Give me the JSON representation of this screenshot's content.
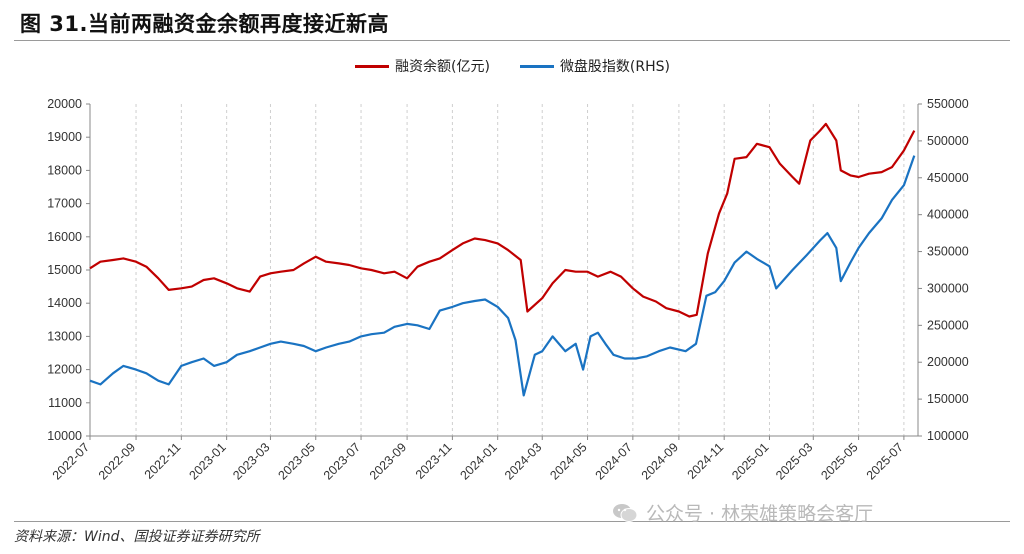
{
  "figure": {
    "title": "图 31.当前两融资金余额再度接近新高",
    "source": "资料来源：Wind、国投证券证券研究所",
    "watermark": "公众号 · 林荣雄策略会客厅"
  },
  "colors": {
    "left_series": "#c00000",
    "right_series": "#1a73c2",
    "grid": "#cfcfcf"
  },
  "icons": {
    "watermark_icon": "wechat-icon"
  },
  "chart_data": {
    "type": "line",
    "title": "",
    "xlabel": "",
    "ylabel": "",
    "y_left": {
      "min": 10000,
      "max": 20000,
      "step": 1000
    },
    "y_right": {
      "min": 100000,
      "max": 550000,
      "step": 50000
    },
    "grid": "vertical-dashed",
    "legend_position": "top-center",
    "x_ticks": [
      "2022-07",
      "2022-09",
      "2022-11",
      "2023-01",
      "2023-03",
      "2023-05",
      "2023-07",
      "2023-09",
      "2023-11",
      "2024-01",
      "2024-03",
      "2024-05",
      "2024-07",
      "2024-09",
      "2024-11",
      "2025-01",
      "2025-03",
      "2025-05",
      "2025-07"
    ],
    "y_left_ticks": [
      "10000",
      "11000",
      "12000",
      "13000",
      "14000",
      "15000",
      "16000",
      "17000",
      "18000",
      "19000",
      "20000"
    ],
    "y_right_ticks": [
      "100000",
      "150000",
      "200000",
      "250000",
      "300000",
      "350000",
      "400000",
      "450000",
      "500000",
      "550000"
    ],
    "series": [
      {
        "name": "融资余额(亿元)",
        "axis": "left",
        "color": "#c00000",
        "points": [
          [
            "2022-07-01",
            15050
          ],
          [
            "2022-07-15",
            15250
          ],
          [
            "2022-08-01",
            15300
          ],
          [
            "2022-08-15",
            15350
          ],
          [
            "2022-09-01",
            15250
          ],
          [
            "2022-09-15",
            15100
          ],
          [
            "2022-10-01",
            14750
          ],
          [
            "2022-10-15",
            14400
          ],
          [
            "2022-11-01",
            14450
          ],
          [
            "2022-11-15",
            14500
          ],
          [
            "2022-12-01",
            14700
          ],
          [
            "2022-12-15",
            14750
          ],
          [
            "2023-01-01",
            14600
          ],
          [
            "2023-01-15",
            14450
          ],
          [
            "2023-02-01",
            14350
          ],
          [
            "2023-02-15",
            14800
          ],
          [
            "2023-03-01",
            14900
          ],
          [
            "2023-03-15",
            14950
          ],
          [
            "2023-04-01",
            15000
          ],
          [
            "2023-04-15",
            15200
          ],
          [
            "2023-05-01",
            15400
          ],
          [
            "2023-05-15",
            15250
          ],
          [
            "2023-06-01",
            15200
          ],
          [
            "2023-06-15",
            15150
          ],
          [
            "2023-07-01",
            15050
          ],
          [
            "2023-07-15",
            15000
          ],
          [
            "2023-08-01",
            14900
          ],
          [
            "2023-08-15",
            14950
          ],
          [
            "2023-09-01",
            14750
          ],
          [
            "2023-09-15",
            15100
          ],
          [
            "2023-10-01",
            15250
          ],
          [
            "2023-10-15",
            15350
          ],
          [
            "2023-11-01",
            15600
          ],
          [
            "2023-11-15",
            15800
          ],
          [
            "2023-12-01",
            15950
          ],
          [
            "2023-12-15",
            15900
          ],
          [
            "2024-01-01",
            15800
          ],
          [
            "2024-01-15",
            15600
          ],
          [
            "2024-02-01",
            15300
          ],
          [
            "2024-02-10",
            13750
          ],
          [
            "2024-03-01",
            14150
          ],
          [
            "2024-03-15",
            14600
          ],
          [
            "2024-04-01",
            15000
          ],
          [
            "2024-04-15",
            14950
          ],
          [
            "2024-05-01",
            14950
          ],
          [
            "2024-05-15",
            14800
          ],
          [
            "2024-06-01",
            14950
          ],
          [
            "2024-06-15",
            14800
          ],
          [
            "2024-07-01",
            14450
          ],
          [
            "2024-07-15",
            14200
          ],
          [
            "2024-08-01",
            14050
          ],
          [
            "2024-08-15",
            13850
          ],
          [
            "2024-09-01",
            13750
          ],
          [
            "2024-09-15",
            13600
          ],
          [
            "2024-09-25",
            13650
          ],
          [
            "2024-10-10",
            15500
          ],
          [
            "2024-10-25",
            16700
          ],
          [
            "2024-11-05",
            17300
          ],
          [
            "2024-11-15",
            18350
          ],
          [
            "2024-12-01",
            18400
          ],
          [
            "2024-12-15",
            18800
          ],
          [
            "2025-01-01",
            18700
          ],
          [
            "2025-01-15",
            18200
          ],
          [
            "2025-02-01",
            17800
          ],
          [
            "2025-02-10",
            17600
          ],
          [
            "2025-02-25",
            18900
          ],
          [
            "2025-03-10",
            19200
          ],
          [
            "2025-03-18",
            19400
          ],
          [
            "2025-04-01",
            18900
          ],
          [
            "2025-04-07",
            18000
          ],
          [
            "2025-04-20",
            17850
          ],
          [
            "2025-05-01",
            17800
          ],
          [
            "2025-05-15",
            17900
          ],
          [
            "2025-06-01",
            17950
          ],
          [
            "2025-06-15",
            18100
          ],
          [
            "2025-07-01",
            18600
          ],
          [
            "2025-07-15",
            19200
          ]
        ]
      },
      {
        "name": "微盘股指数(RHS)",
        "axis": "right",
        "color": "#1a73c2",
        "points": [
          [
            "2022-07-01",
            175000
          ],
          [
            "2022-07-15",
            170000
          ],
          [
            "2022-08-01",
            185000
          ],
          [
            "2022-08-15",
            195000
          ],
          [
            "2022-09-01",
            190000
          ],
          [
            "2022-09-15",
            185000
          ],
          [
            "2022-10-01",
            175000
          ],
          [
            "2022-10-15",
            170000
          ],
          [
            "2022-11-01",
            195000
          ],
          [
            "2022-11-15",
            200000
          ],
          [
            "2022-12-01",
            205000
          ],
          [
            "2022-12-15",
            195000
          ],
          [
            "2023-01-01",
            200000
          ],
          [
            "2023-01-15",
            210000
          ],
          [
            "2023-02-01",
            215000
          ],
          [
            "2023-02-15",
            220000
          ],
          [
            "2023-03-01",
            225000
          ],
          [
            "2023-03-15",
            228000
          ],
          [
            "2023-04-01",
            225000
          ],
          [
            "2023-04-15",
            222000
          ],
          [
            "2023-05-01",
            215000
          ],
          [
            "2023-05-15",
            220000
          ],
          [
            "2023-06-01",
            225000
          ],
          [
            "2023-06-15",
            228000
          ],
          [
            "2023-07-01",
            235000
          ],
          [
            "2023-07-15",
            238000
          ],
          [
            "2023-08-01",
            240000
          ],
          [
            "2023-08-15",
            248000
          ],
          [
            "2023-09-01",
            252000
          ],
          [
            "2023-09-15",
            250000
          ],
          [
            "2023-10-01",
            245000
          ],
          [
            "2023-10-15",
            270000
          ],
          [
            "2023-11-01",
            275000
          ],
          [
            "2023-11-15",
            280000
          ],
          [
            "2023-12-01",
            283000
          ],
          [
            "2023-12-15",
            285000
          ],
          [
            "2024-01-01",
            275000
          ],
          [
            "2024-01-15",
            260000
          ],
          [
            "2024-01-25",
            230000
          ],
          [
            "2024-02-05",
            155000
          ],
          [
            "2024-02-20",
            210000
          ],
          [
            "2024-03-01",
            215000
          ],
          [
            "2024-03-15",
            235000
          ],
          [
            "2024-04-01",
            215000
          ],
          [
            "2024-04-15",
            225000
          ],
          [
            "2024-04-25",
            190000
          ],
          [
            "2024-05-05",
            235000
          ],
          [
            "2024-05-15",
            240000
          ],
          [
            "2024-05-25",
            225000
          ],
          [
            "2024-06-05",
            210000
          ],
          [
            "2024-06-20",
            205000
          ],
          [
            "2024-07-05",
            205000
          ],
          [
            "2024-07-20",
            208000
          ],
          [
            "2024-08-05",
            215000
          ],
          [
            "2024-08-20",
            220000
          ],
          [
            "2024-09-10",
            215000
          ],
          [
            "2024-09-24",
            225000
          ],
          [
            "2024-10-08",
            290000
          ],
          [
            "2024-10-20",
            295000
          ],
          [
            "2024-11-01",
            310000
          ],
          [
            "2024-11-15",
            335000
          ],
          [
            "2024-12-01",
            350000
          ],
          [
            "2024-12-15",
            340000
          ],
          [
            "2025-01-01",
            330000
          ],
          [
            "2025-01-10",
            300000
          ],
          [
            "2025-02-01",
            325000
          ],
          [
            "2025-02-20",
            345000
          ],
          [
            "2025-03-10",
            365000
          ],
          [
            "2025-03-20",
            375000
          ],
          [
            "2025-04-01",
            355000
          ],
          [
            "2025-04-07",
            310000
          ],
          [
            "2025-04-20",
            335000
          ],
          [
            "2025-05-01",
            355000
          ],
          [
            "2025-05-15",
            375000
          ],
          [
            "2025-06-01",
            395000
          ],
          [
            "2025-06-15",
            420000
          ],
          [
            "2025-07-01",
            440000
          ],
          [
            "2025-07-15",
            480000
          ]
        ]
      }
    ]
  }
}
